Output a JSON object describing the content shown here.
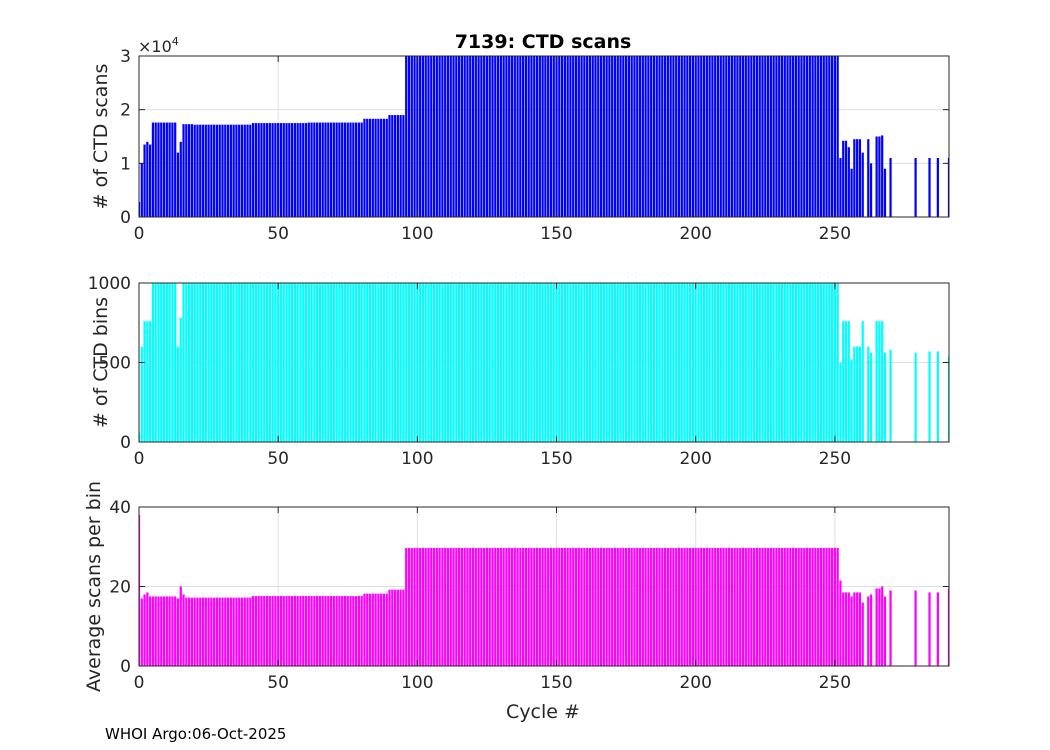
{
  "figure": {
    "title": "7139: CTD scans",
    "xlabel": "Cycle #",
    "footer": "WHOI Argo:06-Oct-2025"
  },
  "chart_data": [
    {
      "type": "bar",
      "id": "scans",
      "ylabel": "# of CTD scans",
      "exponent_label": "×10",
      "exponent_power": "4",
      "color": "#0000ff",
      "xlim": [
        0,
        291
      ],
      "ylim": [
        0,
        3
      ],
      "xticks": [
        0,
        50,
        100,
        150,
        200,
        250
      ],
      "yticks": [
        0,
        1,
        2,
        3
      ],
      "grid": true,
      "segments": [
        {
          "from": 0,
          "to": 0,
          "value": 0.28
        },
        {
          "from": 1,
          "to": 1,
          "value": 1.0
        },
        {
          "from": 2,
          "to": 2,
          "value": 1.35
        },
        {
          "from": 3,
          "to": 3,
          "value": 1.4
        },
        {
          "from": 4,
          "to": 4,
          "value": 1.35
        },
        {
          "from": 5,
          "to": 13,
          "value": 1.76
        },
        {
          "from": 14,
          "to": 14,
          "value": 1.2
        },
        {
          "from": 15,
          "to": 15,
          "value": 1.4
        },
        {
          "from": 16,
          "to": 19,
          "value": 1.73
        },
        {
          "from": 20,
          "to": 40,
          "value": 1.72
        },
        {
          "from": 41,
          "to": 60,
          "value": 1.75
        },
        {
          "from": 61,
          "to": 80,
          "value": 1.76
        },
        {
          "from": 81,
          "to": 89,
          "value": 1.83
        },
        {
          "from": 90,
          "to": 95,
          "value": 1.9
        },
        {
          "from": 96,
          "to": 251,
          "value": 3.0
        },
        {
          "from": 252,
          "to": 252,
          "value": 1.1
        },
        {
          "from": 253,
          "to": 253,
          "value": 1.42
        },
        {
          "from": 254,
          "to": 254,
          "value": 1.42
        },
        {
          "from": 255,
          "to": 255,
          "value": 1.3
        },
        {
          "from": 256,
          "to": 256,
          "value": 0.9
        },
        {
          "from": 257,
          "to": 257,
          "value": 1.45
        },
        {
          "from": 258,
          "to": 258,
          "value": 1.45
        },
        {
          "from": 259,
          "to": 259,
          "value": 1.45
        },
        {
          "from": 260,
          "to": 260,
          "value": 1.2
        },
        {
          "from": 262,
          "to": 262,
          "value": 1.45
        },
        {
          "from": 263,
          "to": 263,
          "value": 1.0
        },
        {
          "from": 265,
          "to": 265,
          "value": 1.5
        },
        {
          "from": 266,
          "to": 266,
          "value": 1.5
        },
        {
          "from": 267,
          "to": 267,
          "value": 1.52
        },
        {
          "from": 268,
          "to": 268,
          "value": 0.9
        },
        {
          "from": 270,
          "to": 270,
          "value": 1.1
        },
        {
          "from": 279,
          "to": 279,
          "value": 1.1
        },
        {
          "from": 284,
          "to": 284,
          "value": 1.1
        },
        {
          "from": 287,
          "to": 287,
          "value": 1.1
        },
        {
          "from": 291,
          "to": 291,
          "value": 1.1
        }
      ]
    },
    {
      "type": "bar",
      "id": "bins",
      "ylabel": "# of CTD bins",
      "color": "#00ffff",
      "xlim": [
        0,
        291
      ],
      "ylim": [
        0,
        1000
      ],
      "xticks": [
        0,
        50,
        100,
        150,
        200,
        250
      ],
      "yticks": [
        0,
        500,
        1000
      ],
      "grid": true,
      "segments": [
        {
          "from": 0,
          "to": 0,
          "value": 60
        },
        {
          "from": 1,
          "to": 1,
          "value": 600
        },
        {
          "from": 2,
          "to": 4,
          "value": 760
        },
        {
          "from": 5,
          "to": 13,
          "value": 1000
        },
        {
          "from": 14,
          "to": 14,
          "value": 600
        },
        {
          "from": 15,
          "to": 15,
          "value": 780
        },
        {
          "from": 16,
          "to": 95,
          "value": 1000
        },
        {
          "from": 96,
          "to": 251,
          "value": 1000
        },
        {
          "from": 252,
          "to": 252,
          "value": 500
        },
        {
          "from": 253,
          "to": 255,
          "value": 760
        },
        {
          "from": 256,
          "to": 256,
          "value": 520
        },
        {
          "from": 257,
          "to": 259,
          "value": 600
        },
        {
          "from": 260,
          "to": 260,
          "value": 760
        },
        {
          "from": 262,
          "to": 262,
          "value": 600
        },
        {
          "from": 263,
          "to": 263,
          "value": 560
        },
        {
          "from": 265,
          "to": 267,
          "value": 760
        },
        {
          "from": 268,
          "to": 268,
          "value": 560
        },
        {
          "from": 270,
          "to": 270,
          "value": 580
        },
        {
          "from": 279,
          "to": 279,
          "value": 560
        },
        {
          "from": 284,
          "to": 284,
          "value": 570
        },
        {
          "from": 287,
          "to": 287,
          "value": 570
        },
        {
          "from": 291,
          "to": 291,
          "value": 540
        }
      ]
    },
    {
      "type": "bar",
      "id": "avg",
      "ylabel": "Average scans per bin",
      "color": "#ff00ff",
      "xlim": [
        0,
        291
      ],
      "ylim": [
        0,
        40
      ],
      "xticks": [
        0,
        50,
        100,
        150,
        200,
        250
      ],
      "yticks": [
        0,
        20,
        40
      ],
      "grid": true,
      "segments": [
        {
          "from": 0,
          "to": 0,
          "value": 38
        },
        {
          "from": 1,
          "to": 1,
          "value": 17
        },
        {
          "from": 2,
          "to": 2,
          "value": 18
        },
        {
          "from": 3,
          "to": 3,
          "value": 18.5
        },
        {
          "from": 4,
          "to": 13,
          "value": 17.5
        },
        {
          "from": 14,
          "to": 14,
          "value": 17
        },
        {
          "from": 15,
          "to": 15,
          "value": 20
        },
        {
          "from": 16,
          "to": 16,
          "value": 18
        },
        {
          "from": 17,
          "to": 40,
          "value": 17.2
        },
        {
          "from": 41,
          "to": 80,
          "value": 17.6
        },
        {
          "from": 81,
          "to": 89,
          "value": 18.2
        },
        {
          "from": 90,
          "to": 95,
          "value": 19.2
        },
        {
          "from": 96,
          "to": 251,
          "value": 29.7
        },
        {
          "from": 252,
          "to": 252,
          "value": 21.5
        },
        {
          "from": 253,
          "to": 255,
          "value": 18.5
        },
        {
          "from": 256,
          "to": 256,
          "value": 17.5
        },
        {
          "from": 257,
          "to": 259,
          "value": 18.5
        },
        {
          "from": 260,
          "to": 260,
          "value": 16
        },
        {
          "from": 262,
          "to": 262,
          "value": 17.5
        },
        {
          "from": 263,
          "to": 263,
          "value": 18
        },
        {
          "from": 265,
          "to": 265,
          "value": 19.5
        },
        {
          "from": 266,
          "to": 266,
          "value": 19.5
        },
        {
          "from": 267,
          "to": 267,
          "value": 20
        },
        {
          "from": 268,
          "to": 268,
          "value": 17.5
        },
        {
          "from": 270,
          "to": 270,
          "value": 19
        },
        {
          "from": 279,
          "to": 279,
          "value": 19
        },
        {
          "from": 284,
          "to": 284,
          "value": 18.5
        },
        {
          "from": 287,
          "to": 287,
          "value": 18.5
        },
        {
          "from": 291,
          "to": 291,
          "value": 19.5
        }
      ]
    }
  ]
}
